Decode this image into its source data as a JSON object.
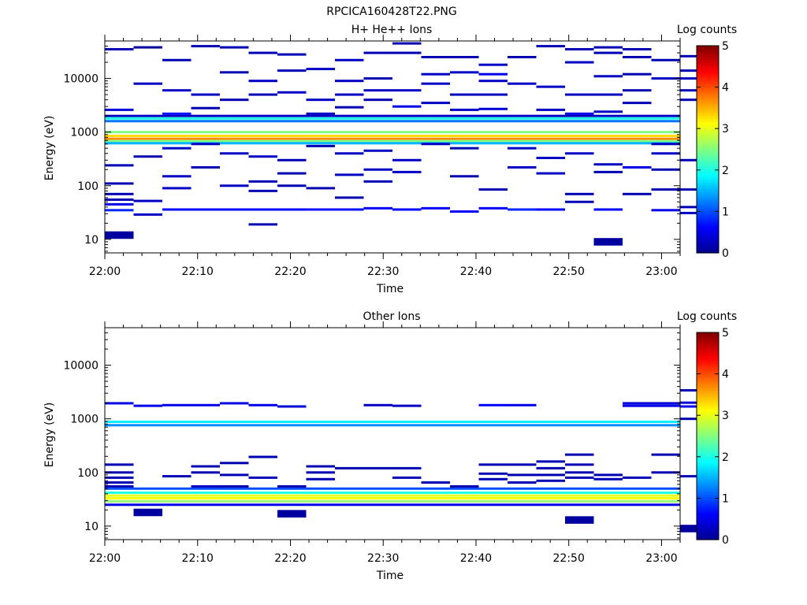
{
  "figure_title": "RPCICA160428T22.PNG",
  "colormap": [
    "#00008f",
    "#0000ff",
    "#0080ff",
    "#00ffff",
    "#80ff80",
    "#ffff00",
    "#ff8000",
    "#ff0000",
    "#800000"
  ],
  "chart_data": [
    {
      "type": "heatmap",
      "title": "H+ He++ Ions",
      "xlabel": "Time",
      "ylabel": "Energy (eV)",
      "x_ticks": [
        "22:00",
        "22:10",
        "22:20",
        "22:30",
        "22:40",
        "22:50",
        "23:00"
      ],
      "y_ticks": [
        "10",
        "100",
        "1000",
        "10000"
      ],
      "y_scale": "log",
      "ylim": [
        5.6,
        50000
      ],
      "xlim": [
        "22:00",
        "23:02"
      ],
      "colorbar": {
        "label": "Log counts",
        "ticks": [
          "0",
          "1",
          "2",
          "3",
          "4",
          "5"
        ],
        "range": [
          0,
          5
        ]
      },
      "time_bins": [
        "22:00",
        "22:03",
        "22:06",
        "22:09",
        "22:13",
        "22:16",
        "22:19",
        "22:22",
        "22:25",
        "22:29",
        "22:32",
        "22:35",
        "22:38",
        "22:41",
        "22:44",
        "22:48",
        "22:51",
        "22:54",
        "22:57",
        "23:00"
      ],
      "cells": [
        [
          0,
          1,
          35000,
          0.2
        ],
        [
          0,
          1,
          2600,
          0.4
        ],
        [
          0,
          1,
          240,
          0.2
        ],
        [
          0,
          1,
          110,
          0.2
        ],
        [
          0,
          1,
          70,
          0.2
        ],
        [
          0,
          1,
          55,
          0.2
        ],
        [
          0,
          1,
          45,
          0.5
        ],
        [
          0,
          1,
          35,
          0.8
        ],
        [
          0,
          1,
          12,
          0.1
        ],
        [
          1,
          2,
          38000,
          0.1
        ],
        [
          1,
          2,
          8000,
          0.3
        ],
        [
          1,
          2,
          350,
          0.2
        ],
        [
          1,
          2,
          52,
          0.3
        ],
        [
          1,
          2,
          29,
          0.3
        ],
        [
          2,
          3,
          22000,
          0.2
        ],
        [
          2,
          3,
          6000,
          0.3
        ],
        [
          2,
          3,
          2200,
          0.7
        ],
        [
          2,
          3,
          500,
          0.3
        ],
        [
          2,
          3,
          150,
          0.3
        ],
        [
          2,
          3,
          90,
          0.3
        ],
        [
          2,
          3,
          36,
          0.6
        ],
        [
          3,
          4,
          40000,
          0.2
        ],
        [
          3,
          4,
          5000,
          0.3
        ],
        [
          3,
          4,
          2800,
          0.2
        ],
        [
          3,
          4,
          600,
          0.3
        ],
        [
          3,
          4,
          220,
          0.2
        ],
        [
          3,
          4,
          36,
          0.6
        ],
        [
          4,
          5,
          38000,
          0.2
        ],
        [
          4,
          5,
          13000,
          0.2
        ],
        [
          4,
          5,
          4000,
          0.2
        ],
        [
          4,
          5,
          400,
          0.3
        ],
        [
          4,
          5,
          100,
          0.3
        ],
        [
          4,
          5,
          36,
          0.6
        ],
        [
          5,
          6,
          30000,
          0.2
        ],
        [
          5,
          6,
          9000,
          0.3
        ],
        [
          5,
          6,
          5000,
          0.2
        ],
        [
          5,
          6,
          350,
          0.3
        ],
        [
          5,
          6,
          120,
          0.2
        ],
        [
          5,
          6,
          80,
          0.2
        ],
        [
          5,
          6,
          36,
          0.6
        ],
        [
          5,
          6,
          19,
          0.2
        ],
        [
          6,
          7,
          28000,
          0.2
        ],
        [
          6,
          7,
          14000,
          0.2
        ],
        [
          6,
          7,
          5500,
          0.3
        ],
        [
          6,
          7,
          300,
          0.2
        ],
        [
          6,
          7,
          170,
          0.2
        ],
        [
          6,
          7,
          100,
          0.2
        ],
        [
          6,
          7,
          36,
          0.6
        ],
        [
          7,
          8,
          15000,
          0.3
        ],
        [
          7,
          8,
          4000,
          0.3
        ],
        [
          7,
          8,
          2200,
          0.3
        ],
        [
          7,
          8,
          550,
          0.2
        ],
        [
          7,
          8,
          90,
          0.2
        ],
        [
          7,
          8,
          36,
          0.7
        ],
        [
          8,
          9,
          22000,
          0.3
        ],
        [
          8,
          9,
          9000,
          0.3
        ],
        [
          8,
          9,
          5000,
          0.3
        ],
        [
          8,
          9,
          2900,
          0.2
        ],
        [
          8,
          9,
          400,
          0.3
        ],
        [
          8,
          9,
          160,
          0.3
        ],
        [
          8,
          9,
          60,
          0.2
        ],
        [
          8,
          9,
          36,
          0.7
        ],
        [
          9,
          10,
          30000,
          0.2
        ],
        [
          9,
          10,
          10000,
          0.2
        ],
        [
          9,
          10,
          6000,
          0.3
        ],
        [
          9,
          10,
          4000,
          0.2
        ],
        [
          9,
          10,
          450,
          0.3
        ],
        [
          9,
          10,
          200,
          0.3
        ],
        [
          9,
          10,
          120,
          0.2
        ],
        [
          9,
          10,
          38,
          0.6
        ],
        [
          10,
          11,
          45000,
          0.2
        ],
        [
          10,
          11,
          30000,
          0.2
        ],
        [
          10,
          11,
          6000,
          0.3
        ],
        [
          10,
          11,
          3000,
          0.5
        ],
        [
          10,
          11,
          300,
          0.3
        ],
        [
          10,
          11,
          180,
          0.3
        ],
        [
          10,
          11,
          36,
          0.6
        ],
        [
          11,
          12,
          25000,
          0.2
        ],
        [
          11,
          12,
          12000,
          0.3
        ],
        [
          11,
          12,
          8000,
          0.3
        ],
        [
          11,
          12,
          3500,
          0.3
        ],
        [
          11,
          12,
          600,
          0.3
        ],
        [
          11,
          12,
          38,
          0.6
        ],
        [
          12,
          13,
          25000,
          0.2
        ],
        [
          12,
          13,
          13000,
          0.3
        ],
        [
          12,
          13,
          5000,
          0.3
        ],
        [
          12,
          13,
          2600,
          0.3
        ],
        [
          12,
          13,
          500,
          0.2
        ],
        [
          12,
          13,
          150,
          0.2
        ],
        [
          12,
          13,
          33,
          0.6
        ],
        [
          13,
          14,
          18000,
          0.3
        ],
        [
          13,
          14,
          12000,
          0.5
        ],
        [
          13,
          14,
          9000,
          0.3
        ],
        [
          13,
          14,
          5000,
          0.3
        ],
        [
          13,
          14,
          2700,
          0.4
        ],
        [
          13,
          14,
          85,
          0.2
        ],
        [
          13,
          14,
          38,
          0.6
        ],
        [
          14,
          15,
          25000,
          0.2
        ],
        [
          14,
          15,
          8000,
          0.3
        ],
        [
          14,
          15,
          500,
          0.3
        ],
        [
          14,
          15,
          220,
          0.3
        ],
        [
          14,
          15,
          36,
          0.8
        ],
        [
          15,
          16,
          40000,
          0.2
        ],
        [
          15,
          16,
          7000,
          0.3
        ],
        [
          15,
          16,
          2600,
          0.3
        ],
        [
          15,
          16,
          330,
          0.3
        ],
        [
          15,
          16,
          170,
          0.3
        ],
        [
          15,
          16,
          36,
          0.6
        ],
        [
          16,
          17,
          35000,
          0.2
        ],
        [
          16,
          17,
          20000,
          0.3
        ],
        [
          16,
          17,
          5000,
          0.3
        ],
        [
          16,
          17,
          2200,
          0.5
        ],
        [
          16,
          17,
          400,
          0.3
        ],
        [
          16,
          17,
          70,
          0.2
        ],
        [
          16,
          17,
          50,
          0.2
        ],
        [
          17,
          18,
          38000,
          0.2
        ],
        [
          17,
          18,
          30000,
          0.2
        ],
        [
          17,
          18,
          11000,
          0.3
        ],
        [
          17,
          18,
          5000,
          0.3
        ],
        [
          17,
          18,
          2400,
          0.3
        ],
        [
          17,
          18,
          250,
          0.3
        ],
        [
          17,
          18,
          180,
          0.2
        ],
        [
          17,
          18,
          36,
          0.6
        ],
        [
          17,
          18,
          9,
          0.1
        ],
        [
          18,
          19,
          35000,
          0.2
        ],
        [
          18,
          19,
          25000,
          0.2
        ],
        [
          18,
          19,
          12000,
          0.2
        ],
        [
          18,
          19,
          6000,
          0.2
        ],
        [
          18,
          19,
          3500,
          0.2
        ],
        [
          18,
          19,
          220,
          0.5
        ],
        [
          18,
          19,
          70,
          0.2
        ],
        [
          19,
          20,
          22000,
          0.2
        ],
        [
          19,
          20,
          10000,
          0.3
        ],
        [
          19,
          20,
          600,
          0.3
        ],
        [
          19,
          20,
          400,
          0.3
        ],
        [
          19,
          20,
          200,
          0.2
        ],
        [
          19,
          20,
          85,
          0.2
        ],
        [
          19,
          20,
          35,
          0.5
        ],
        [
          20,
          21,
          26000,
          0.2
        ],
        [
          20,
          21,
          14000,
          0.2
        ],
        [
          20,
          21,
          10000,
          0.3
        ],
        [
          20,
          21,
          6000,
          0.2
        ],
        [
          20,
          21,
          4000,
          0.2
        ],
        [
          20,
          21,
          300,
          0.2
        ],
        [
          20,
          21,
          85,
          0.2
        ],
        [
          20,
          21,
          40,
          0.2
        ],
        [
          20,
          21,
          31,
          0.3
        ]
      ],
      "bands": [
        [
          2000,
          0.3
        ],
        [
          1800,
          2.0
        ],
        [
          1600,
          1.2
        ],
        [
          1000,
          2.5
        ],
        [
          850,
          3.3
        ],
        [
          750,
          3.7
        ],
        [
          680,
          2.5
        ],
        [
          620,
          1.5
        ]
      ]
    },
    {
      "type": "heatmap",
      "title": "Other Ions",
      "xlabel": "Time",
      "ylabel": "Energy (eV)",
      "x_ticks": [
        "22:00",
        "22:10",
        "22:20",
        "22:30",
        "22:40",
        "22:50",
        "23:00"
      ],
      "y_ticks": [
        "10",
        "100",
        "1000",
        "10000"
      ],
      "y_scale": "log",
      "ylim": [
        5.6,
        50000
      ],
      "xlim": [
        "22:00",
        "23:02"
      ],
      "colorbar": {
        "label": "Log counts",
        "ticks": [
          "0",
          "1",
          "2",
          "3",
          "4",
          "5"
        ],
        "range": [
          0,
          5
        ]
      },
      "cells": [
        [
          0,
          1,
          1950,
          0.5
        ],
        [
          0,
          1,
          140,
          0.2
        ],
        [
          0,
          1,
          100,
          0.2
        ],
        [
          0,
          1,
          80,
          0.2
        ],
        [
          0,
          1,
          65,
          0.2
        ],
        [
          0,
          1,
          55,
          0.2
        ],
        [
          1,
          2,
          1750,
          0.5
        ],
        [
          1,
          2,
          18,
          0.1
        ],
        [
          2,
          3,
          1800,
          0.5
        ],
        [
          2,
          3,
          85,
          0.2
        ],
        [
          3,
          4,
          1800,
          0.5
        ],
        [
          3,
          4,
          130,
          0.2
        ],
        [
          3,
          4,
          100,
          0.2
        ],
        [
          3,
          4,
          55,
          0.3
        ],
        [
          4,
          5,
          1950,
          0.5
        ],
        [
          4,
          5,
          150,
          0.2
        ],
        [
          4,
          5,
          90,
          0.2
        ],
        [
          4,
          5,
          55,
          0.2
        ],
        [
          5,
          6,
          1800,
          0.5
        ],
        [
          5,
          6,
          195,
          0.2
        ],
        [
          5,
          6,
          80,
          0.2
        ],
        [
          6,
          7,
          1700,
          0.4
        ],
        [
          6,
          7,
          55,
          0.2
        ],
        [
          6,
          7,
          17,
          0.1
        ],
        [
          7,
          8,
          130,
          0.2
        ],
        [
          7,
          8,
          100,
          0.2
        ],
        [
          7,
          8,
          75,
          0.2
        ],
        [
          8,
          9,
          120,
          0.2
        ],
        [
          9,
          10,
          1800,
          0.3
        ],
        [
          9,
          10,
          120,
          0.2
        ],
        [
          10,
          11,
          1750,
          0.3
        ],
        [
          10,
          11,
          120,
          0.2
        ],
        [
          10,
          11,
          80,
          0.2
        ],
        [
          11,
          12,
          65,
          0.2
        ],
        [
          12,
          13,
          55,
          0.2
        ],
        [
          13,
          14,
          1800,
          0.6
        ],
        [
          13,
          14,
          140,
          0.2
        ],
        [
          13,
          14,
          95,
          0.2
        ],
        [
          13,
          14,
          75,
          0.2
        ],
        [
          14,
          15,
          1800,
          0.5
        ],
        [
          14,
          15,
          140,
          0.2
        ],
        [
          14,
          15,
          90,
          0.2
        ],
        [
          14,
          15,
          65,
          0.2
        ],
        [
          15,
          16,
          160,
          0.2
        ],
        [
          15,
          16,
          120,
          0.2
        ],
        [
          15,
          16,
          90,
          0.2
        ],
        [
          15,
          16,
          70,
          0.2
        ],
        [
          16,
          17,
          215,
          0.2
        ],
        [
          16,
          17,
          140,
          0.2
        ],
        [
          16,
          17,
          100,
          0.2
        ],
        [
          16,
          17,
          80,
          0.2
        ],
        [
          16,
          17,
          13,
          0.1
        ],
        [
          17,
          18,
          90,
          0.2
        ],
        [
          17,
          18,
          75,
          0.2
        ],
        [
          18,
          19,
          1950,
          0.4
        ],
        [
          18,
          19,
          1750,
          0.5
        ],
        [
          18,
          19,
          80,
          0.2
        ],
        [
          19,
          20,
          1950,
          0.4
        ],
        [
          19,
          20,
          1750,
          0.5
        ],
        [
          19,
          20,
          215,
          0.2
        ],
        [
          19,
          20,
          100,
          0.2
        ],
        [
          20,
          21,
          3400,
          0.2
        ],
        [
          20,
          21,
          2000,
          0.4
        ],
        [
          20,
          21,
          1700,
          0.5
        ],
        [
          20,
          21,
          1000,
          0.2
        ],
        [
          20,
          21,
          85,
          0.2
        ],
        [
          20,
          21,
          9,
          0.1
        ]
      ],
      "bands": [
        [
          880,
          1.8
        ],
        [
          760,
          1.3
        ],
        [
          50,
          1.0
        ],
        [
          42,
          2.0
        ],
        [
          37,
          3.0
        ],
        [
          33,
          3.1
        ],
        [
          29,
          2.6
        ],
        [
          25,
          0.5
        ]
      ]
    }
  ]
}
